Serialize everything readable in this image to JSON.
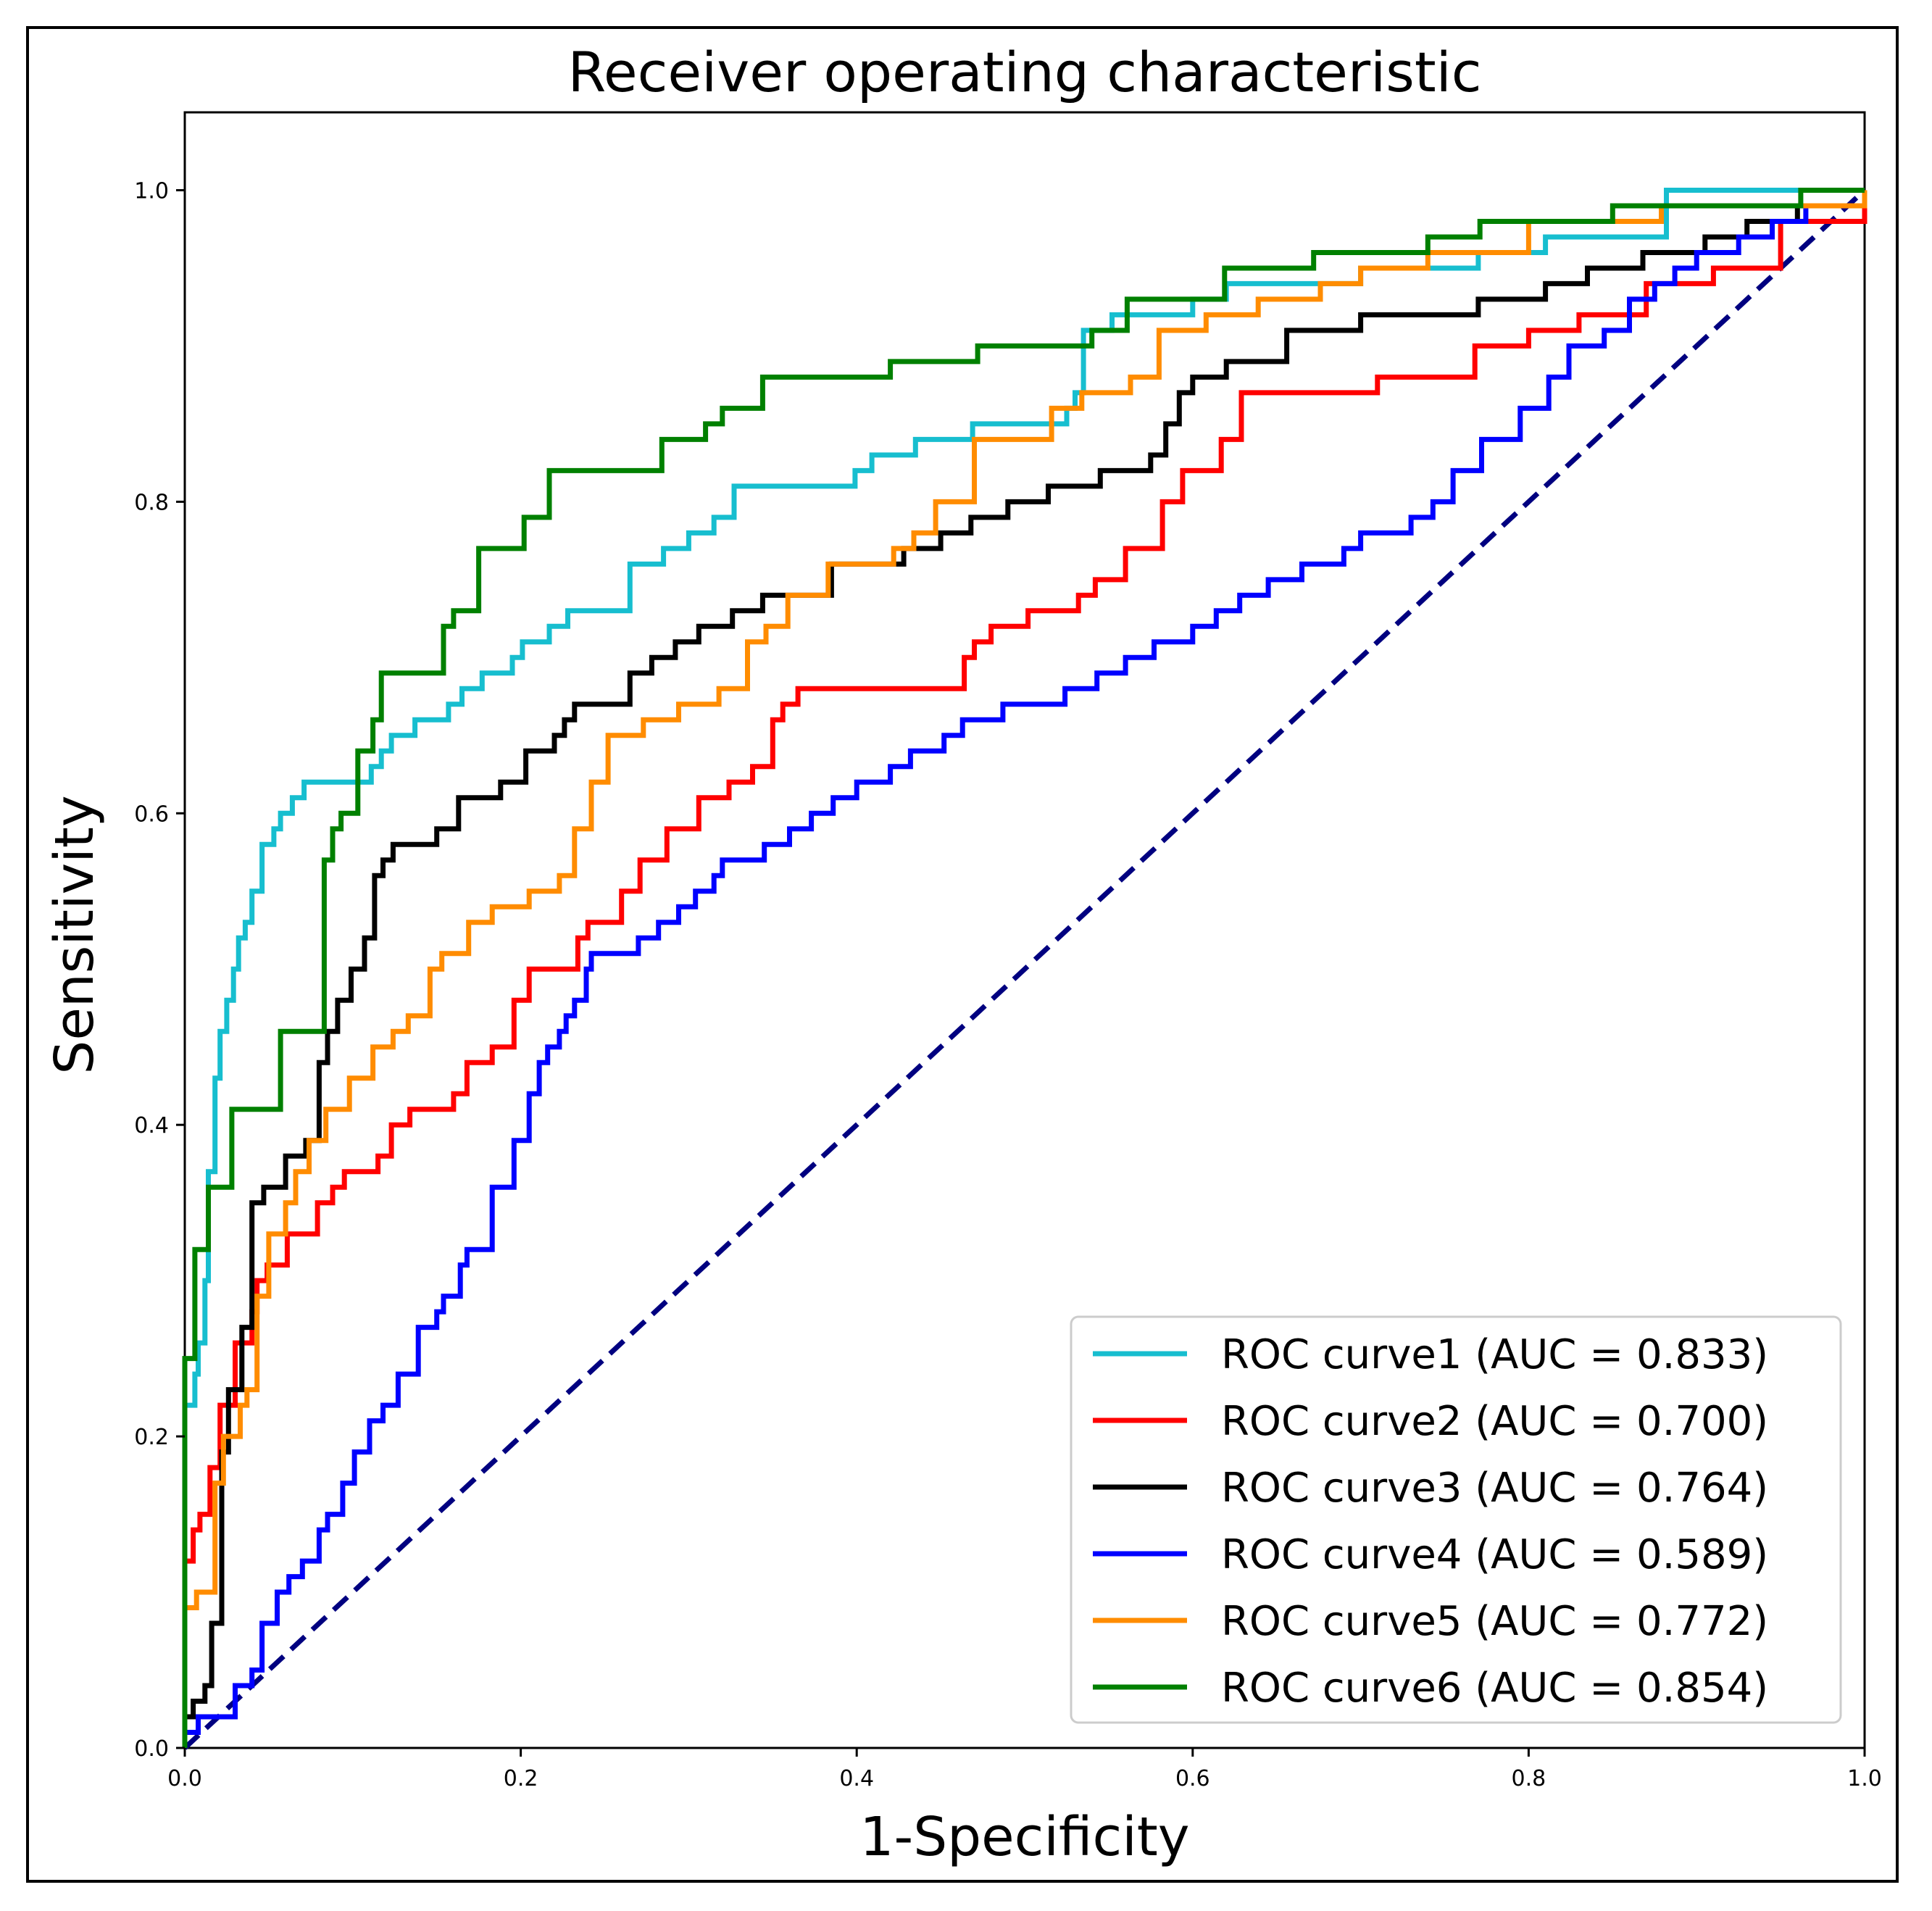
{
  "chart_data": {
    "type": "line",
    "title": "Receiver operating characteristic",
    "xlabel": "1-Specificity",
    "ylabel": "Sensitivity",
    "xlim": [
      0.0,
      1.0
    ],
    "ylim": [
      0.0,
      1.05
    ],
    "xticks": [
      "0.0",
      "0.2",
      "0.4",
      "0.6",
      "0.8",
      "1.0"
    ],
    "yticks": [
      "0.0",
      "0.2",
      "0.4",
      "0.6",
      "0.8",
      "1.0"
    ],
    "grid": false,
    "legend_position": "bottom-right",
    "diagonal": {
      "x": [
        0,
        1
      ],
      "y": [
        0,
        1
      ],
      "color": "#000080",
      "style": "dashed"
    },
    "series": [
      {
        "name": "ROC curve1 (AUC = 0.833)",
        "color": "#17BECF",
        "x": [
          0.0,
          0.0,
          0.006,
          0.008,
          0.012,
          0.014,
          0.018,
          0.021,
          0.025,
          0.029,
          0.032,
          0.036,
          0.04,
          0.046,
          0.053,
          0.057,
          0.059,
          0.064,
          0.071,
          0.096,
          0.111,
          0.117,
          0.123,
          0.13,
          0.137,
          0.157,
          0.165,
          0.177,
          0.195,
          0.201,
          0.206,
          0.217,
          0.228,
          0.25,
          0.265,
          0.285,
          0.3,
          0.315,
          0.327,
          0.39,
          0.399,
          0.409,
          0.435,
          0.469,
          0.525,
          0.53,
          0.535,
          0.552,
          0.566,
          0.6,
          0.62,
          0.67,
          0.7,
          0.74,
          0.77,
          0.81,
          0.882,
          1.0
        ],
        "y": [
          0.0,
          0.22,
          0.24,
          0.26,
          0.3,
          0.37,
          0.43,
          0.46,
          0.48,
          0.5,
          0.52,
          0.53,
          0.55,
          0.58,
          0.59,
          0.6,
          0.6,
          0.61,
          0.62,
          0.62,
          0.63,
          0.64,
          0.65,
          0.65,
          0.66,
          0.67,
          0.68,
          0.69,
          0.7,
          0.71,
          0.71,
          0.72,
          0.73,
          0.73,
          0.76,
          0.77,
          0.78,
          0.79,
          0.81,
          0.81,
          0.82,
          0.83,
          0.84,
          0.85,
          0.86,
          0.87,
          0.91,
          0.92,
          0.92,
          0.93,
          0.94,
          0.94,
          0.95,
          0.95,
          0.96,
          0.97,
          1.0,
          1.0
        ]
      },
      {
        "name": "ROC curve2 (AUC = 0.700)",
        "color": "#FF0000",
        "x": [
          0.0,
          0.0,
          0.005,
          0.009,
          0.015,
          0.021,
          0.03,
          0.04,
          0.043,
          0.049,
          0.061,
          0.079,
          0.088,
          0.095,
          0.115,
          0.123,
          0.134,
          0.16,
          0.168,
          0.183,
          0.196,
          0.205,
          0.234,
          0.24,
          0.26,
          0.271,
          0.287,
          0.306,
          0.324,
          0.338,
          0.35,
          0.356,
          0.365,
          0.435,
          0.464,
          0.47,
          0.48,
          0.502,
          0.532,
          0.542,
          0.56,
          0.582,
          0.594,
          0.617,
          0.629,
          0.71,
          0.768,
          0.8,
          0.83,
          0.87,
          0.91,
          0.95,
          1.0
        ],
        "y": [
          0.0,
          0.12,
          0.14,
          0.15,
          0.18,
          0.22,
          0.26,
          0.28,
          0.3,
          0.31,
          0.33,
          0.35,
          0.36,
          0.37,
          0.38,
          0.4,
          0.41,
          0.42,
          0.44,
          0.45,
          0.48,
          0.5,
          0.52,
          0.53,
          0.55,
          0.57,
          0.59,
          0.61,
          0.62,
          0.63,
          0.66,
          0.67,
          0.68,
          0.68,
          0.7,
          0.71,
          0.72,
          0.73,
          0.74,
          0.75,
          0.77,
          0.8,
          0.82,
          0.84,
          0.87,
          0.88,
          0.9,
          0.91,
          0.92,
          0.94,
          0.95,
          0.98,
          1.0
        ]
      },
      {
        "name": "ROC curve3 (AUC = 0.764)",
        "color": "#000000",
        "x": [
          0.0,
          0.0,
          0.005,
          0.012,
          0.016,
          0.022,
          0.026,
          0.034,
          0.04,
          0.047,
          0.06,
          0.072,
          0.08,
          0.085,
          0.091,
          0.099,
          0.107,
          0.113,
          0.118,
          0.124,
          0.131,
          0.15,
          0.163,
          0.188,
          0.203,
          0.22,
          0.226,
          0.232,
          0.247,
          0.265,
          0.278,
          0.292,
          0.306,
          0.326,
          0.344,
          0.371,
          0.385,
          0.428,
          0.45,
          0.468,
          0.49,
          0.514,
          0.545,
          0.566,
          0.575,
          0.584,
          0.592,
          0.6,
          0.62,
          0.656,
          0.7,
          0.726,
          0.77,
          0.81,
          0.835,
          0.868,
          0.905,
          0.93,
          0.96,
          1.0
        ],
        "y": [
          0.0,
          0.02,
          0.03,
          0.04,
          0.08,
          0.19,
          0.23,
          0.27,
          0.35,
          0.36,
          0.38,
          0.39,
          0.44,
          0.46,
          0.48,
          0.5,
          0.52,
          0.56,
          0.57,
          0.58,
          0.58,
          0.59,
          0.61,
          0.62,
          0.64,
          0.65,
          0.66,
          0.67,
          0.67,
          0.69,
          0.7,
          0.71,
          0.72,
          0.73,
          0.74,
          0.74,
          0.76,
          0.77,
          0.78,
          0.79,
          0.8,
          0.81,
          0.82,
          0.82,
          0.83,
          0.85,
          0.87,
          0.88,
          0.89,
          0.91,
          0.92,
          0.92,
          0.93,
          0.94,
          0.95,
          0.96,
          0.97,
          0.98,
          0.99,
          1.0
        ]
      },
      {
        "name": "ROC curve4 (AUC = 0.589)",
        "color": "#0000FF",
        "x": [
          0.0,
          0.0,
          0.008,
          0.018,
          0.03,
          0.04,
          0.046,
          0.055,
          0.062,
          0.07,
          0.08,
          0.085,
          0.094,
          0.101,
          0.11,
          0.118,
          0.127,
          0.139,
          0.15,
          0.154,
          0.164,
          0.168,
          0.183,
          0.196,
          0.205,
          0.211,
          0.216,
          0.223,
          0.227,
          0.232,
          0.239,
          0.242,
          0.27,
          0.282,
          0.294,
          0.304,
          0.315,
          0.32,
          0.345,
          0.36,
          0.373,
          0.386,
          0.4,
          0.42,
          0.432,
          0.452,
          0.463,
          0.487,
          0.524,
          0.543,
          0.56,
          0.577,
          0.6,
          0.614,
          0.628,
          0.645,
          0.665,
          0.69,
          0.7,
          0.73,
          0.743,
          0.755,
          0.772,
          0.795,
          0.812,
          0.824,
          0.845,
          0.86,
          0.875,
          0.887,
          0.9,
          0.925,
          0.945,
          0.965,
          0.985,
          1.0
        ],
        "y": [
          0.0,
          0.01,
          0.02,
          0.02,
          0.04,
          0.05,
          0.08,
          0.1,
          0.11,
          0.12,
          0.14,
          0.15,
          0.17,
          0.19,
          0.21,
          0.22,
          0.24,
          0.27,
          0.28,
          0.29,
          0.31,
          0.32,
          0.36,
          0.39,
          0.42,
          0.44,
          0.45,
          0.46,
          0.47,
          0.48,
          0.5,
          0.51,
          0.52,
          0.53,
          0.54,
          0.55,
          0.56,
          0.57,
          0.58,
          0.59,
          0.6,
          0.61,
          0.62,
          0.63,
          0.64,
          0.65,
          0.66,
          0.67,
          0.68,
          0.69,
          0.7,
          0.71,
          0.72,
          0.73,
          0.74,
          0.75,
          0.76,
          0.77,
          0.78,
          0.79,
          0.8,
          0.82,
          0.84,
          0.86,
          0.88,
          0.9,
          0.91,
          0.93,
          0.94,
          0.95,
          0.96,
          0.97,
          0.98,
          0.99,
          0.99,
          1.0
        ]
      },
      {
        "name": "ROC curve5 (AUC = 0.772)",
        "color": "#FF8C00",
        "x": [
          0.0,
          0.0,
          0.007,
          0.018,
          0.023,
          0.033,
          0.037,
          0.043,
          0.05,
          0.06,
          0.066,
          0.074,
          0.084,
          0.098,
          0.112,
          0.124,
          0.133,
          0.146,
          0.153,
          0.169,
          0.183,
          0.205,
          0.223,
          0.232,
          0.242,
          0.252,
          0.273,
          0.294,
          0.318,
          0.335,
          0.346,
          0.359,
          0.383,
          0.422,
          0.434,
          0.447,
          0.47,
          0.516,
          0.534,
          0.563,
          0.58,
          0.608,
          0.639,
          0.676,
          0.7,
          0.74,
          0.8,
          0.879,
          0.94,
          1.0
        ],
        "y": [
          0.0,
          0.09,
          0.1,
          0.17,
          0.2,
          0.22,
          0.23,
          0.29,
          0.33,
          0.35,
          0.37,
          0.39,
          0.41,
          0.43,
          0.45,
          0.46,
          0.47,
          0.5,
          0.51,
          0.53,
          0.54,
          0.55,
          0.56,
          0.59,
          0.62,
          0.65,
          0.66,
          0.67,
          0.68,
          0.71,
          0.72,
          0.74,
          0.76,
          0.77,
          0.78,
          0.8,
          0.84,
          0.86,
          0.87,
          0.88,
          0.91,
          0.92,
          0.93,
          0.94,
          0.95,
          0.96,
          0.98,
          0.99,
          0.99,
          1.0
        ]
      },
      {
        "name": "ROC curve6 (AUC = 0.854)",
        "color": "#008000",
        "x": [
          0.0,
          0.0,
          0.006,
          0.014,
          0.028,
          0.057,
          0.083,
          0.088,
          0.093,
          0.103,
          0.112,
          0.117,
          0.123,
          0.154,
          0.16,
          0.175,
          0.202,
          0.217,
          0.238,
          0.284,
          0.29,
          0.31,
          0.32,
          0.344,
          0.376,
          0.42,
          0.438,
          0.472,
          0.54,
          0.561,
          0.619,
          0.644,
          0.672,
          0.74,
          0.771,
          0.8,
          0.85,
          0.89,
          0.93,
          0.962,
          1.0
        ],
        "y": [
          0.0,
          0.25,
          0.32,
          0.36,
          0.41,
          0.46,
          0.57,
          0.59,
          0.6,
          0.64,
          0.66,
          0.69,
          0.69,
          0.72,
          0.73,
          0.77,
          0.79,
          0.82,
          0.82,
          0.84,
          0.84,
          0.85,
          0.86,
          0.88,
          0.88,
          0.89,
          0.89,
          0.9,
          0.91,
          0.93,
          0.95,
          0.95,
          0.96,
          0.97,
          0.98,
          0.98,
          0.99,
          0.99,
          0.99,
          1.0,
          1.0
        ]
      }
    ]
  }
}
